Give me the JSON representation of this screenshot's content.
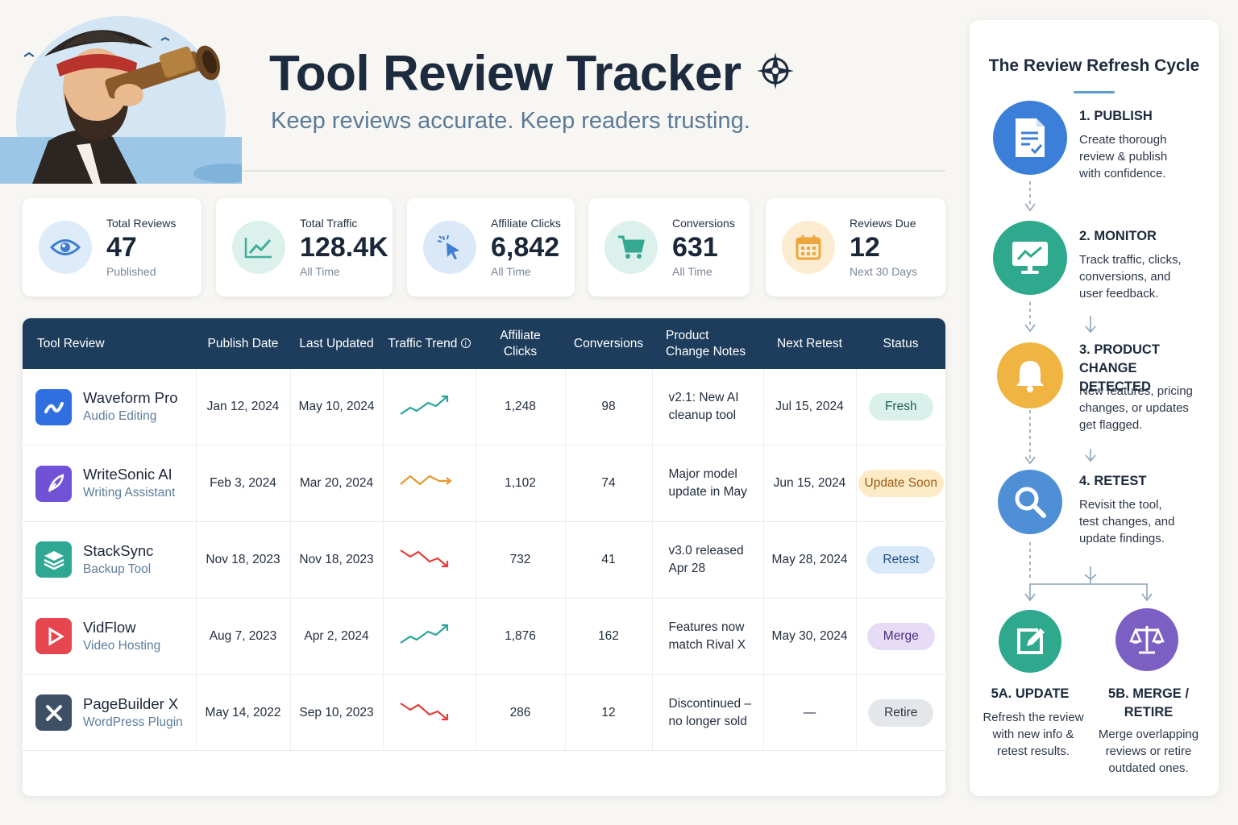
{
  "header": {
    "title": "Tool Review Tracker",
    "subtitle": "Keep reviews accurate. Keep readers trusting."
  },
  "stats": [
    {
      "label": "Total Reviews",
      "value": "47",
      "sub": "Published",
      "icon": "eye-icon",
      "color": "#4b86d4"
    },
    {
      "label": "Total Traffic",
      "value": "128.4K",
      "sub": "All Time",
      "icon": "trend-chart-icon",
      "color": "#3fae9a"
    },
    {
      "label": "Affiliate Clicks",
      "value": "6,842",
      "sub": "All Time",
      "icon": "cursor-click-icon",
      "color": "#3f7fd1"
    },
    {
      "label": "Conversions",
      "value": "631",
      "sub": "All Time",
      "icon": "cart-icon",
      "color": "#34a891"
    },
    {
      "label": "Reviews Due",
      "value": "12",
      "sub": "Next 30 Days",
      "icon": "calendar-icon",
      "color": "#eea63c"
    }
  ],
  "table": {
    "headers": [
      "Tool Review",
      "Publish Date",
      "Last Updated",
      "Traffic Trend",
      "Affiliate Clicks",
      "Conversions",
      "Product Change Notes",
      "Next Retest",
      "Status"
    ],
    "rows": [
      {
        "name": "Waveform Pro",
        "category": "Audio Editing",
        "logo": "waveform-logo-icon",
        "logo_color": "#2f6fe0",
        "publish": "Jan 12, 2024",
        "updated": "May 10, 2024",
        "trend": "up",
        "trend_color": "#2aa59a",
        "clicks": "1,248",
        "conversions": "98",
        "notes": [
          "v2.1: New AI",
          "cleanup tool"
        ],
        "retest": "Jul 15, 2024",
        "status": "Fresh",
        "status_bg": "#d9f1ea",
        "status_fg": "#1e5e4f"
      },
      {
        "name": "WriteSonic AI",
        "category": "Writing Assistant",
        "logo": "feather-logo-icon",
        "logo_color": "#6f52d6",
        "publish": "Feb 3, 2024",
        "updated": "Mar 20, 2024",
        "trend": "flat",
        "trend_color": "#e5982c",
        "clicks": "1,102",
        "conversions": "74",
        "notes": [
          "Major model",
          "update in May"
        ],
        "retest": "Jun 15, 2024",
        "status": "Update Soon",
        "status_bg": "#fdebc8",
        "status_fg": "#9a5a12"
      },
      {
        "name": "StackSync",
        "category": "Backup Tool",
        "logo": "layers-logo-icon",
        "logo_color": "#2fa893",
        "publish": "Nov 18, 2023",
        "updated": "Nov 18, 2023",
        "trend": "down",
        "trend_color": "#e0413b",
        "clicks": "732",
        "conversions": "41",
        "notes": [
          "v3.0 released",
          "Apr 28"
        ],
        "retest": "May 28, 2024",
        "status": "Retest",
        "status_bg": "#d9e9fa",
        "status_fg": "#1f4e80"
      },
      {
        "name": "VidFlow",
        "category": "Video Hosting",
        "logo": "play-logo-icon",
        "logo_color": "#e5464f",
        "publish": "Aug 7, 2023",
        "updated": "Apr 2, 2024",
        "trend": "up",
        "trend_color": "#2aa59a",
        "clicks": "1,876",
        "conversions": "162",
        "notes": [
          "Features now",
          "match Rival X"
        ],
        "retest": "May 30, 2024",
        "status": "Merge",
        "status_bg": "#e6dcf5",
        "status_fg": "#4b2d7e"
      },
      {
        "name": "PageBuilder X",
        "category": "WordPress Plugin",
        "logo": "x-logo-icon",
        "logo_color": "#3d5066",
        "publish": "May 14, 2022",
        "updated": "Sep 10, 2023",
        "trend": "down",
        "trend_color": "#e0413b",
        "clicks": "286",
        "conversions": "12",
        "notes": [
          "Discontinued –",
          "no longer sold"
        ],
        "retest": "—",
        "status": "Retire",
        "status_bg": "#e4e7ea",
        "status_fg": "#2d3744"
      }
    ]
  },
  "cycle": {
    "title": "The Review Refresh Cycle",
    "steps": [
      {
        "title": "1. PUBLISH",
        "text": [
          "Create thorough",
          "review & publish",
          "with confidence."
        ],
        "icon": "document-check-icon",
        "color": "#3b7fd8"
      },
      {
        "title": "2. MONITOR",
        "text": [
          "Track traffic, clicks,",
          "conversions, and",
          "user feedback."
        ],
        "icon": "monitor-chart-icon",
        "color": "#2ea98e"
      },
      {
        "title": [
          "3. PRODUCT CHANGE",
          "DETECTED"
        ],
        "text": [
          "New features, pricing",
          "changes, or updates",
          "get flagged."
        ],
        "icon": "bell-icon",
        "color": "#f0b443"
      },
      {
        "title": "4. RETEST",
        "text": [
          "Revisit the tool,",
          "test changes, and",
          "update findings."
        ],
        "icon": "magnifier-icon",
        "color": "#4f8fd6"
      },
      {
        "title": "5A. UPDATE",
        "text": [
          "Refresh the review",
          "with new info &",
          "retest results."
        ],
        "icon": "edit-icon",
        "color": "#2ea98e"
      },
      {
        "title": [
          "5B. MERGE /",
          "RETIRE"
        ],
        "text": [
          "Merge overlapping",
          "reviews or retire",
          "outdated ones."
        ],
        "icon": "scales-icon",
        "color": "#7b5fc2"
      }
    ]
  }
}
